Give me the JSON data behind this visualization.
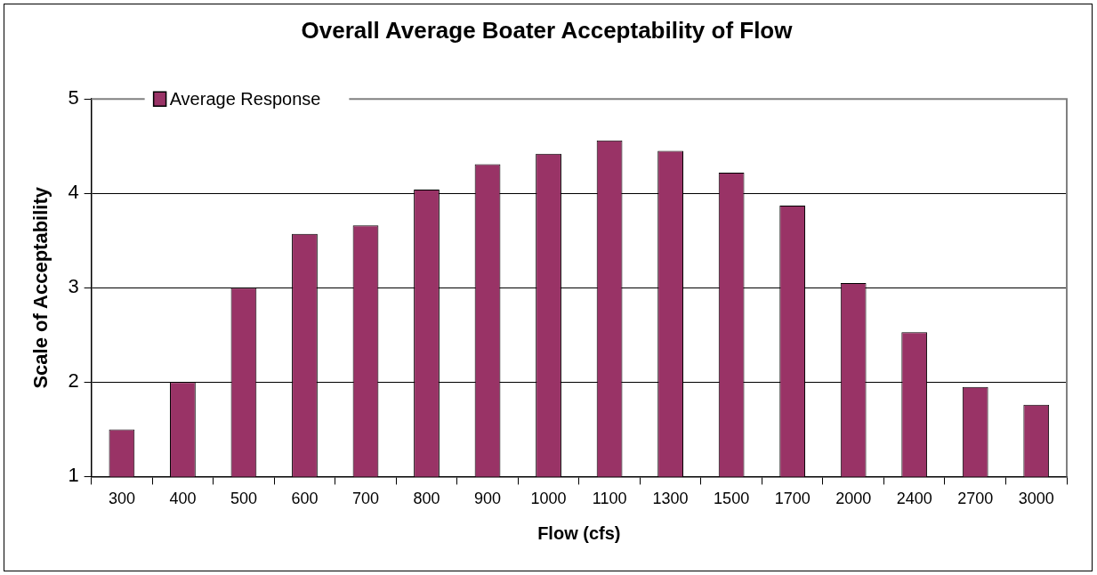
{
  "chart_data": {
    "type": "bar",
    "title": "Overall Average Boater Acceptability of Flow",
    "xlabel": "Flow (cfs)",
    "ylabel": "Scale of Acceptability",
    "categories": [
      "300",
      "400",
      "500",
      "600",
      "700",
      "800",
      "900",
      "1000",
      "1100",
      "1300",
      "1500",
      "1700",
      "2000",
      "2400",
      "2700",
      "3000"
    ],
    "series": [
      {
        "name": "Average Response",
        "color": "#993366",
        "values": [
          1.5,
          2.0,
          3.0,
          3.57,
          3.66,
          4.04,
          4.31,
          4.42,
          4.56,
          4.45,
          4.22,
          3.87,
          3.05,
          2.53,
          1.95,
          1.76
        ]
      }
    ],
    "ylim": [
      1,
      5
    ],
    "yticks": [
      1,
      2,
      3,
      4,
      5
    ],
    "grid": "y",
    "legend": "top left"
  }
}
